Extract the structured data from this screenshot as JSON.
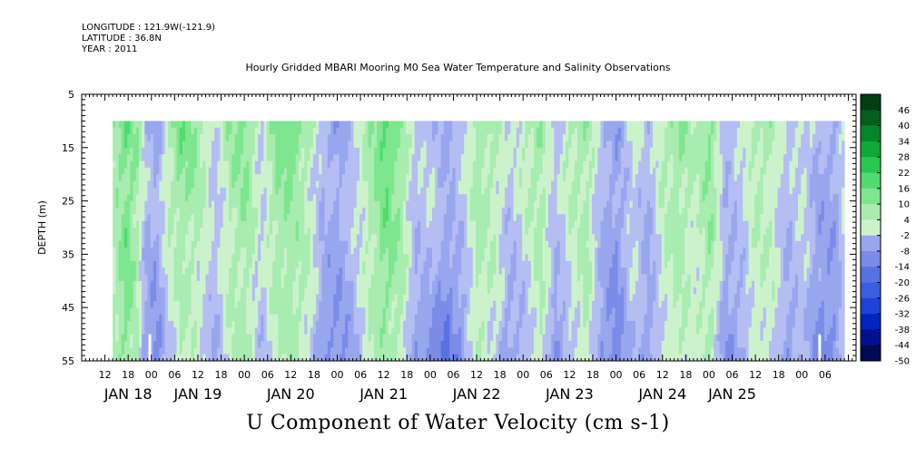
{
  "header": {
    "longitude": "LONGITUDE : 121.9W(-121.9)",
    "latitude": "LATITUDE : 36.8N",
    "year": "YEAR : 2011",
    "title": "Hourly Gridded MBARI Mooring M0 Sea Water Temperature and Salinity Observations"
  },
  "footer": {
    "variable_label": "U Component of Water Velocity (cm s-1)"
  },
  "chart_data": {
    "type": "heatmap",
    "title": "Hourly Gridded MBARI Mooring M0 Sea Water Temperature and Salinity Observations",
    "ylabel": "DEPTH (m)",
    "ylim": [
      5,
      55
    ],
    "y_inverted": true,
    "y_ticks": [
      5,
      15,
      25,
      35,
      45,
      55
    ],
    "xlim": [
      6,
      206
    ],
    "data_x_range": [
      14,
      203
    ],
    "data_depth_range": [
      10,
      55
    ],
    "x_ticks": [
      {
        "hour": 12,
        "label": "12"
      },
      {
        "hour": 18,
        "label": "18"
      },
      {
        "hour": 24,
        "label": "00"
      },
      {
        "hour": 30,
        "label": "06"
      },
      {
        "hour": 36,
        "label": "12"
      },
      {
        "hour": 42,
        "label": "18"
      },
      {
        "hour": 48,
        "label": "00"
      },
      {
        "hour": 54,
        "label": "06"
      },
      {
        "hour": 60,
        "label": "12"
      },
      {
        "hour": 66,
        "label": "18"
      },
      {
        "hour": 72,
        "label": "00"
      },
      {
        "hour": 78,
        "label": "06"
      },
      {
        "hour": 84,
        "label": "12"
      },
      {
        "hour": 90,
        "label": "18"
      },
      {
        "hour": 96,
        "label": "00"
      },
      {
        "hour": 102,
        "label": "06"
      },
      {
        "hour": 108,
        "label": "12"
      },
      {
        "hour": 114,
        "label": "18"
      },
      {
        "hour": 120,
        "label": "00"
      },
      {
        "hour": 126,
        "label": "06"
      },
      {
        "hour": 132,
        "label": "12"
      },
      {
        "hour": 138,
        "label": "18"
      },
      {
        "hour": 144,
        "label": "00"
      },
      {
        "hour": 150,
        "label": "06"
      },
      {
        "hour": 156,
        "label": "12"
      },
      {
        "hour": 162,
        "label": "18"
      },
      {
        "hour": 168,
        "label": "00"
      },
      {
        "hour": 174,
        "label": "06"
      },
      {
        "hour": 180,
        "label": "12"
      },
      {
        "hour": 186,
        "label": "18"
      },
      {
        "hour": 192,
        "label": "00"
      },
      {
        "hour": 198,
        "label": "06"
      }
    ],
    "date_labels": [
      {
        "hour": 18,
        "label": "JAN 18"
      },
      {
        "hour": 36,
        "label": "JAN 19"
      },
      {
        "hour": 60,
        "label": "JAN 20"
      },
      {
        "hour": 84,
        "label": "JAN 21"
      },
      {
        "hour": 108,
        "label": "JAN 22"
      },
      {
        "hour": 132,
        "label": "JAN 23"
      },
      {
        "hour": 156,
        "label": "JAN 24"
      },
      {
        "hour": 174,
        "label": "JAN 25"
      }
    ],
    "colorbar": {
      "levels": [
        -50,
        -44,
        -38,
        -32,
        -26,
        -20,
        -14,
        -8,
        -2,
        4,
        10,
        16,
        22,
        28,
        34,
        40,
        46
      ],
      "colors": [
        "#000a55",
        "#001090",
        "#0024c0",
        "#1c42d8",
        "#3a5ee0",
        "#5872e4",
        "#7a8ce8",
        "#98a6ee",
        "#b4bef2",
        "#ccf2cc",
        "#a8ecb0",
        "#7ee68e",
        "#50dc6e",
        "#28c850",
        "#10a838",
        "#06862a",
        "#045e1c",
        "#023e12"
      ],
      "tick_labels": [
        "46",
        "40",
        "34",
        "28",
        "22",
        "16",
        "10",
        "4",
        "-2",
        "-8",
        "-14",
        "-20",
        "-26",
        "-32",
        "-38",
        "-44",
        "-50"
      ]
    },
    "colorbar_bands": [
      {
        "from": -50,
        "to": -44,
        "color": "#000a55"
      },
      {
        "from": -44,
        "to": -38,
        "color": "#001090"
      },
      {
        "from": -38,
        "to": -32,
        "color": "#0024c0"
      },
      {
        "from": -32,
        "to": -26,
        "color": "#1c42d8"
      },
      {
        "from": -26,
        "to": -20,
        "color": "#3a5ee0"
      },
      {
        "from": -20,
        "to": -14,
        "color": "#5872e4"
      },
      {
        "from": -14,
        "to": -8,
        "color": "#7a8ce8"
      },
      {
        "from": -8,
        "to": -2,
        "color": "#98a6ee"
      },
      {
        "from": -2,
        "to": 4,
        "color": "#ccf2cc"
      },
      {
        "from": 4,
        "to": 10,
        "color": "#a8ecb0"
      },
      {
        "from": 10,
        "to": 16,
        "color": "#7ee68e"
      },
      {
        "from": 16,
        "to": 22,
        "color": "#50dc6e"
      },
      {
        "from": 22,
        "to": 28,
        "color": "#28c850"
      },
      {
        "from": 28,
        "to": 34,
        "color": "#10a838"
      },
      {
        "from": 34,
        "to": 40,
        "color": "#06862a"
      },
      {
        "from": 40,
        "to": 46,
        "color": "#045e1c"
      },
      {
        "from": 46,
        "to": 52,
        "color": "#023e12"
      }
    ],
    "field": {
      "comment_free": true,
      "hours": [
        14,
        17,
        20,
        22,
        25,
        28,
        31,
        34,
        37,
        40,
        44,
        48,
        52,
        56,
        60,
        64,
        68,
        72,
        76,
        80,
        84,
        88,
        92,
        96,
        100,
        104,
        108,
        112,
        116,
        120,
        124,
        128,
        132,
        136,
        140,
        144,
        148,
        152,
        156,
        160,
        164,
        168,
        172,
        176,
        180,
        184,
        188,
        192,
        196,
        200,
        203
      ],
      "near_surface_u": [
        10,
        16,
        8,
        -6,
        -10,
        4,
        14,
        12,
        6,
        -4,
        10,
        12,
        -2,
        12,
        16,
        8,
        -8,
        -12,
        -4,
        8,
        18,
        10,
        -6,
        -4,
        -12,
        -6,
        10,
        6,
        -4,
        4,
        10,
        -6,
        6,
        10,
        -8,
        -12,
        4,
        -6,
        6,
        10,
        4,
        12,
        -8,
        -2,
        8,
        6,
        -4,
        2,
        -6,
        -8,
        2
      ],
      "near_bottom_u": [
        6,
        10,
        4,
        -14,
        -18,
        -6,
        4,
        2,
        -4,
        -10,
        4,
        6,
        -6,
        2,
        6,
        -2,
        -14,
        -16,
        -10,
        2,
        6,
        4,
        -14,
        -18,
        -22,
        -14,
        4,
        -2,
        -12,
        -8,
        4,
        -18,
        -4,
        4,
        -14,
        -20,
        -6,
        -14,
        -2,
        4,
        -2,
        6,
        -16,
        -10,
        2,
        -2,
        -14,
        -6,
        -18,
        -16,
        -4
      ],
      "upper_mid_bias": [
        6,
        12,
        8,
        -4,
        -8,
        4,
        10,
        8,
        4,
        -4,
        6,
        10,
        -2,
        10,
        8,
        2,
        -6,
        -8,
        -2,
        6,
        14,
        8,
        -4,
        -2,
        -8,
        -2,
        6,
        4,
        -4,
        2,
        8,
        -4,
        4,
        6,
        -6,
        -10,
        -2,
        -8,
        4,
        8,
        2,
        10,
        -6,
        -4,
        4,
        2,
        -6,
        -2,
        -10,
        -10,
        0
      ],
      "lower_mid_bias": [
        4,
        14,
        4,
        -8,
        -12,
        0,
        6,
        4,
        0,
        -6,
        4,
        6,
        -4,
        6,
        8,
        4,
        -10,
        -12,
        -6,
        4,
        12,
        6,
        -8,
        -6,
        -14,
        -8,
        6,
        2,
        -8,
        -4,
        6,
        -8,
        0,
        6,
        -10,
        -14,
        -2,
        -10,
        2,
        6,
        0,
        8,
        -10,
        -6,
        4,
        2,
        -8,
        -2,
        -12,
        -12,
        0
      ]
    },
    "missing_markers": [
      {
        "hour": 23.6,
        "depth_from": 50,
        "depth_to": 55
      },
      {
        "hour": 196.6,
        "depth_from": 50,
        "depth_to": 55
      }
    ]
  }
}
